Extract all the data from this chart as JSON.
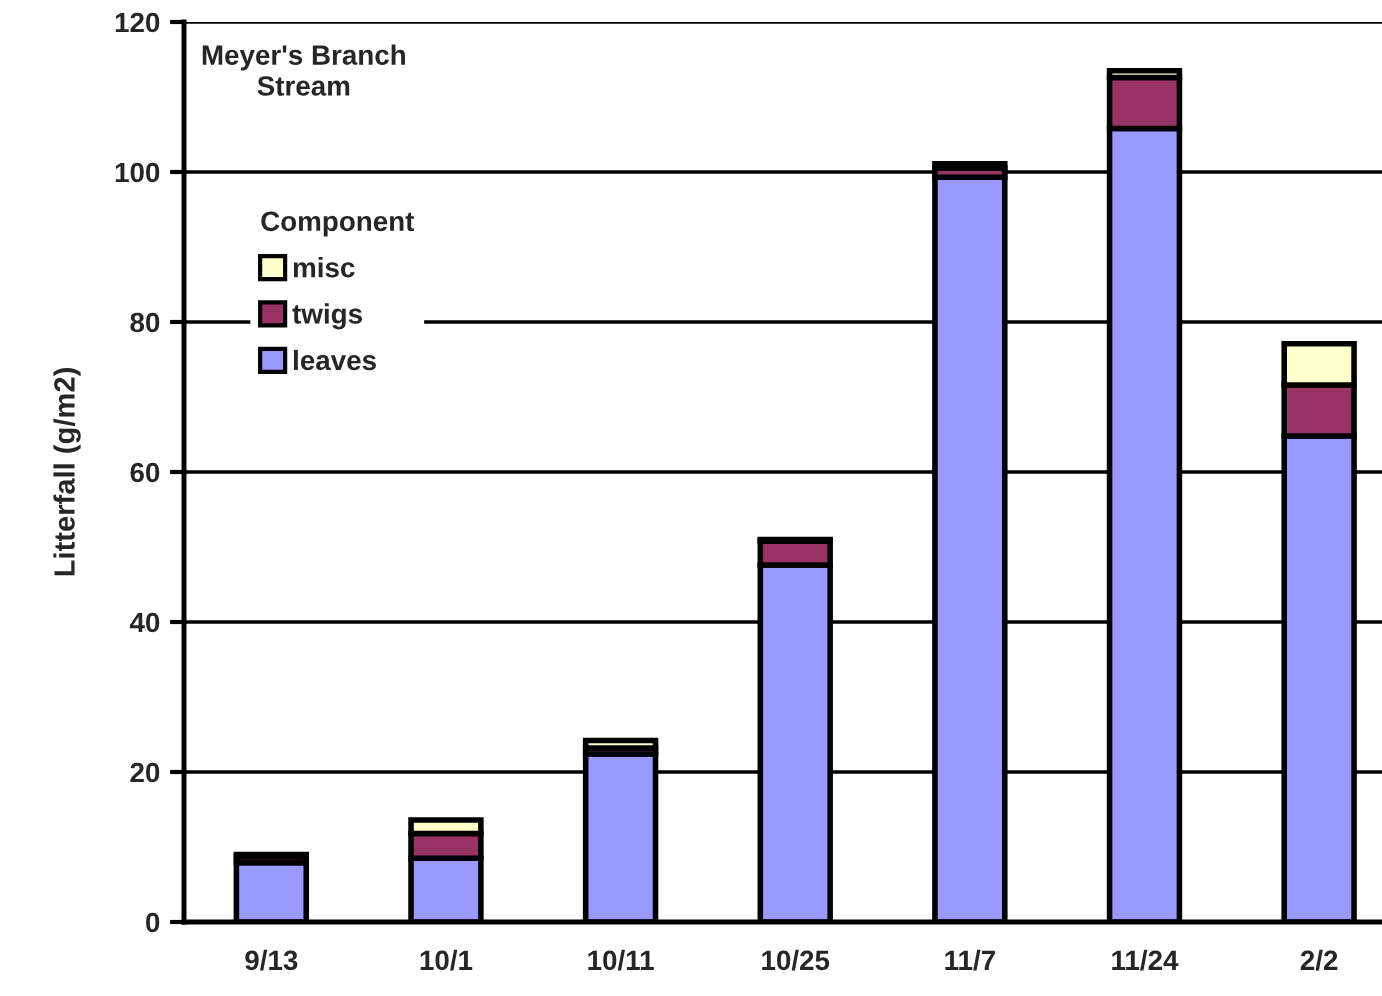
{
  "chart_data": {
    "type": "bar",
    "title": "Meyer's Branch\nStream",
    "ylabel": "Litterfall (g/m2)",
    "legend_title": "Component",
    "categories": [
      "9/13",
      "10/1",
      "10/11",
      "10/25",
      "11/7",
      "11/24",
      "2/2"
    ],
    "series": [
      {
        "name": "leaves",
        "color": "#9999ff",
        "values": [
          7.9,
          8.5,
          22.4,
          47.6,
          99.3,
          105.8,
          64.8
        ]
      },
      {
        "name": "twigs",
        "color": "#993366",
        "values": [
          0.8,
          3.3,
          0.8,
          3.2,
          1.2,
          6.8,
          6.8
        ]
      },
      {
        "name": "misc",
        "color": "#ffffcc",
        "values": [
          0.3,
          1.8,
          1.0,
          0.2,
          0.6,
          0.9,
          5.5
        ]
      }
    ],
    "stacked": true,
    "ylim": [
      0,
      120
    ],
    "yticks": [
      0,
      20,
      40,
      60,
      80,
      100,
      120
    ],
    "grid": "y",
    "legend": "top left"
  }
}
